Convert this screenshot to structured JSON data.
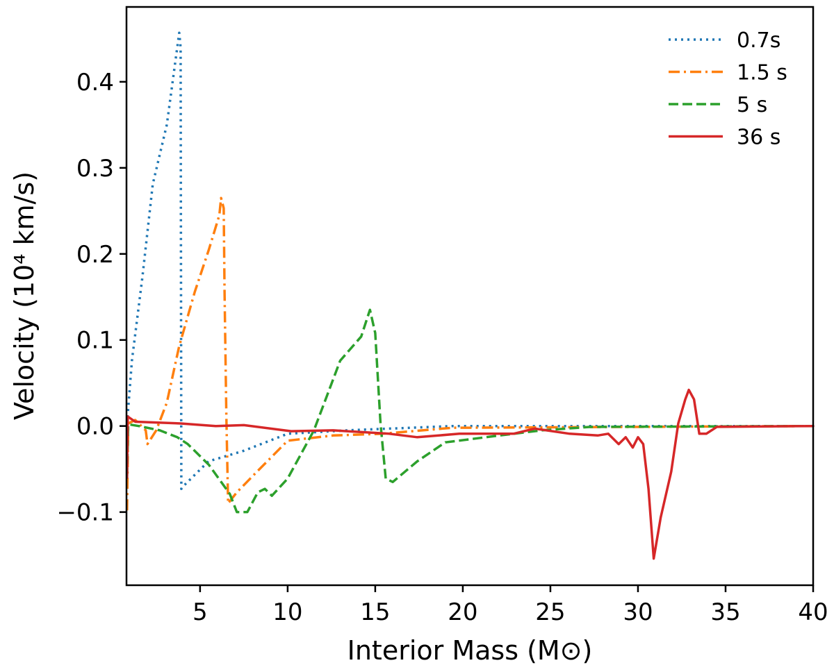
{
  "chart_data": {
    "type": "line",
    "title": "",
    "xlabel": "Interior Mass (M⊙)",
    "ylabel": "Velocity (10⁴ km/s)",
    "xlim": [
      0.8,
      40
    ],
    "ylim": [
      -0.185,
      0.487
    ],
    "xticks": [
      5,
      10,
      15,
      20,
      25,
      30,
      35,
      40
    ],
    "yticks": [
      -0.1,
      0.0,
      0.1,
      0.2,
      0.3,
      0.4
    ],
    "ytick_labels": [
      "−0.1",
      "0.0",
      "0.1",
      "0.2",
      "0.3",
      "0.4"
    ],
    "grid": false,
    "legend_position": "top-right",
    "series": [
      {
        "name": "0.7s",
        "color": "#1f77b4",
        "style": "dotted",
        "x": [
          0.83,
          1.11,
          1.71,
          2.3,
          3.1,
          3.81,
          3.89,
          3.93,
          4.09,
          5.48,
          7.46,
          10,
          13.4,
          19.4,
          40
        ],
        "y": [
          0.003,
          0.076,
          0.173,
          0.281,
          0.35,
          0.457,
          0.44,
          -0.073,
          -0.069,
          -0.041,
          -0.029,
          -0.009,
          -0.005,
          0,
          0
        ]
      },
      {
        "name": "1.5 s",
        "color": "#ff7f0e",
        "style": "dashdot",
        "x": [
          0.83,
          0.9,
          1.3,
          1.9,
          2.0,
          2.5,
          3.1,
          3.8,
          4.7,
          5.5,
          6.1,
          6.2,
          6.35,
          6.4,
          6.5,
          6.6,
          7.1,
          8.25,
          10,
          12.6,
          15.4,
          19.4,
          40
        ],
        "y": [
          -0.098,
          0.003,
          0.007,
          -0.005,
          -0.021,
          -0.005,
          0.027,
          0.092,
          0.156,
          0.205,
          0.245,
          0.265,
          0.253,
          0.156,
          0.011,
          -0.09,
          -0.077,
          -0.053,
          -0.017,
          -0.011,
          -0.009,
          -0.002,
          0
        ]
      },
      {
        "name": "5 s",
        "color": "#2ca02c",
        "style": "dashed",
        "x": [
          0.83,
          0.9,
          1.5,
          2.7,
          3.7,
          4.3,
          5.5,
          6.7,
          7.1,
          7.7,
          8.3,
          8.7,
          9.1,
          10,
          11.5,
          13.0,
          14.2,
          14.7,
          15.0,
          15.3,
          15.6,
          16.0,
          17.4,
          19,
          22.1,
          24.5,
          27.3,
          40
        ],
        "y": [
          -0.06,
          0.002,
          0,
          -0.005,
          -0.013,
          -0.021,
          -0.045,
          -0.079,
          -0.1,
          -0.1,
          -0.077,
          -0.073,
          -0.081,
          -0.061,
          -0.005,
          0.076,
          0.104,
          0.135,
          0.108,
          0.003,
          -0.061,
          -0.065,
          -0.041,
          -0.019,
          -0.011,
          -0.005,
          -0.001,
          0
        ]
      },
      {
        "name": "36 s",
        "color": "#d62728",
        "style": "solid",
        "x": [
          0.83,
          0.87,
          1.3,
          3.9,
          5.9,
          7.5,
          10.2,
          12.6,
          15.8,
          17.4,
          19.8,
          22.9,
          24.1,
          26.1,
          27.7,
          28.3,
          28.9,
          29.3,
          29.7,
          30,
          30.3,
          30.6,
          30.9,
          31.3,
          31.9,
          32.3,
          32.7,
          32.9,
          33.2,
          33.5,
          33.9,
          34.5,
          40
        ],
        "y": [
          -0.06,
          0.011,
          0.005,
          0.003,
          0,
          0.001,
          -0.006,
          -0.005,
          -0.009,
          -0.013,
          -0.009,
          -0.009,
          -0.003,
          -0.009,
          -0.011,
          -0.009,
          -0.021,
          -0.013,
          -0.025,
          -0.013,
          -0.021,
          -0.073,
          -0.154,
          -0.106,
          -0.053,
          0.003,
          0.031,
          0.042,
          0.031,
          -0.009,
          -0.009,
          -0.001,
          0
        ]
      }
    ]
  }
}
